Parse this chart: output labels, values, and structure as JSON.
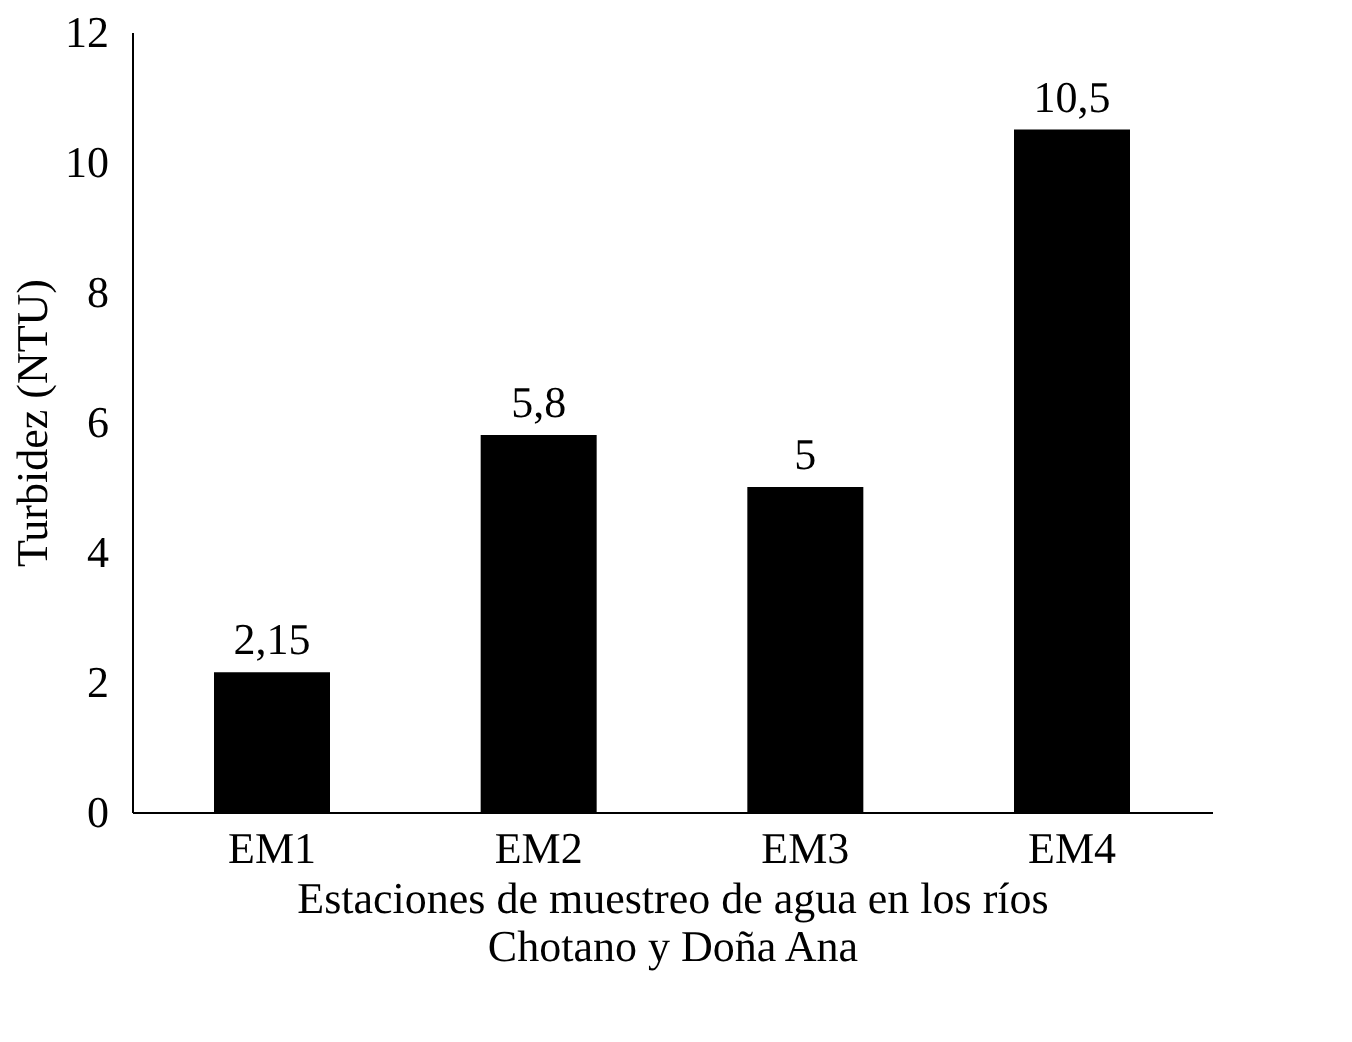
{
  "chart_data": {
    "type": "bar",
    "xlabel": "Estaciones de muestreo de agua en los ríos Chotano y Doña Ana",
    "ylabel": "Turbidez (NTU)",
    "categories": [
      "EM1",
      "EM2",
      "EM3",
      "EM4"
    ],
    "values": [
      2.15,
      5.8,
      5,
      10.5
    ],
    "value_labels": [
      "2,15",
      "5,8",
      "5",
      "10,5"
    ],
    "color": "#000000",
    "ylim": [
      0,
      12
    ],
    "yticks": [
      0,
      2,
      4,
      6,
      8,
      10,
      12
    ],
    "grid": false
  }
}
